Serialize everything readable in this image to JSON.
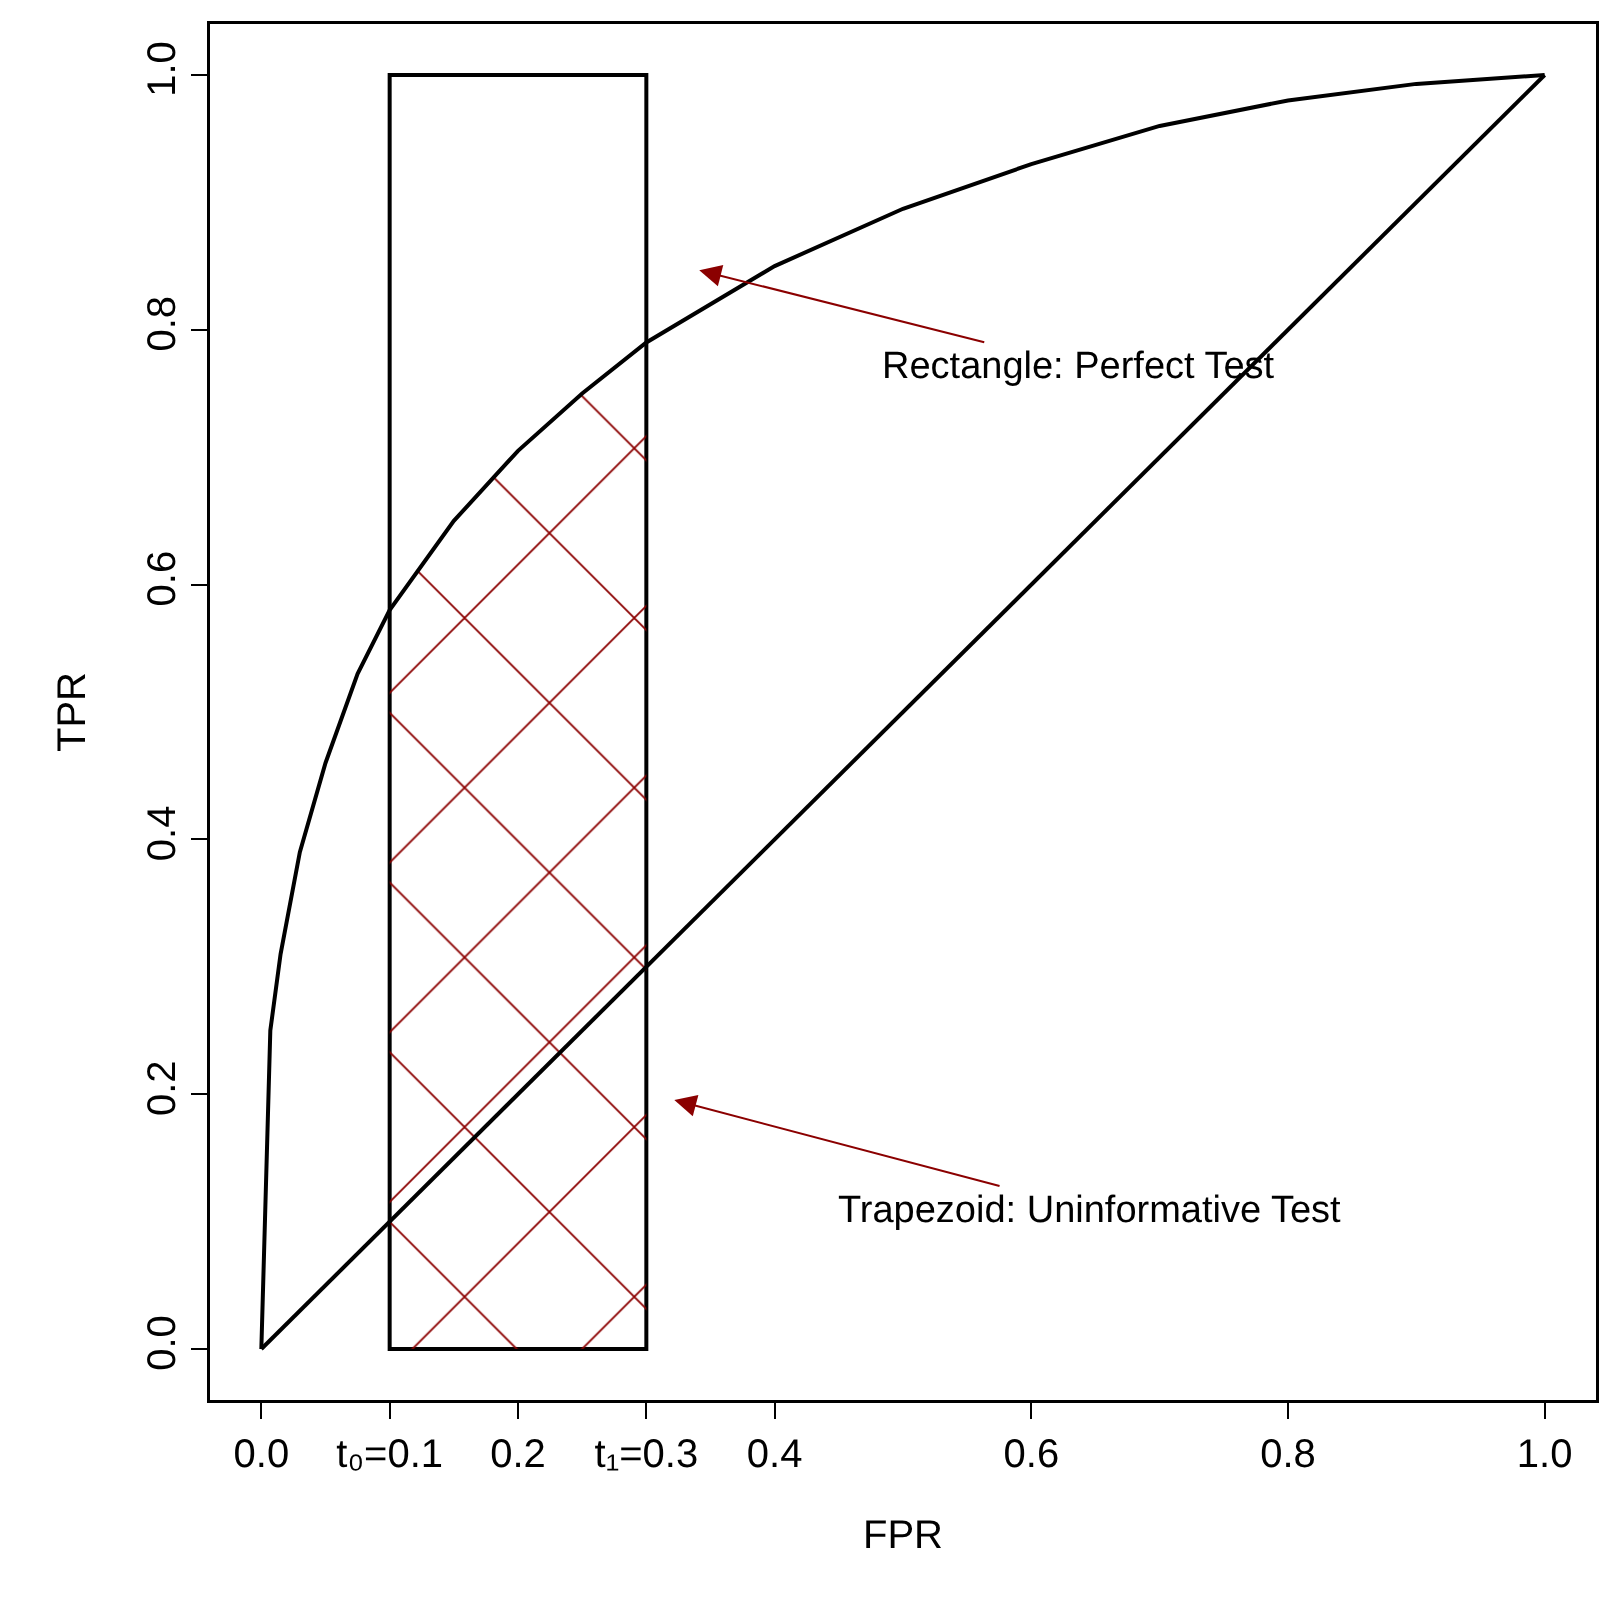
{
  "chart_data": {
    "type": "line",
    "xlabel": "FPR",
    "ylabel": "TPR",
    "xlim": [
      -0.04,
      1.04
    ],
    "ylim": [
      -0.04,
      1.04
    ],
    "xticks": [
      {
        "value": 0,
        "label": "0.0"
      },
      {
        "value": 0.1,
        "label": "t₀=0.1"
      },
      0.2,
      {
        "value": 0.3,
        "label": "t₁=0.3"
      },
      0.4,
      0.6,
      0.8,
      {
        "value": 1,
        "label": "1.0"
      }
    ],
    "yticks": [
      {
        "value": 0,
        "label": "0.0"
      },
      0.2,
      0.4,
      0.6,
      0.8,
      {
        "value": 1,
        "label": "1.0"
      }
    ],
    "grid": false,
    "marker": "none",
    "line_style": "solid",
    "series": [
      {
        "type": "area",
        "color": "#8b0000",
        "x": [
          0.1,
          0.12,
          0.15,
          0.18,
          0.2,
          0.22,
          0.25,
          0.28,
          0.3
        ],
        "values": [
          0.58,
          0.61,
          0.65,
          0.685,
          0.705,
          0.725,
          0.75,
          0.775,
          0.79
        ]
      },
      {
        "color": "#000000",
        "x": [
          0,
          0.007,
          0.015,
          0.03,
          0.05,
          0.075,
          0.1,
          0.15,
          0.2,
          0.25,
          0.3,
          0.4,
          0.5,
          0.6,
          0.7,
          0.8,
          0.9,
          1
        ],
        "values": [
          0,
          0.25,
          0.31,
          0.39,
          0.46,
          0.53,
          0.58,
          0.65,
          0.705,
          0.75,
          0.79,
          0.85,
          0.895,
          0.93,
          0.96,
          0.98,
          0.993,
          1
        ]
      },
      {
        "color": "#000000",
        "x": [
          0,
          1
        ],
        "values": [
          0,
          1
        ]
      },
      {
        "type": "bar",
        "color": "#000000",
        "x": [
          0.2
        ],
        "values": [
          1
        ]
      }
    ],
    "annotations": [
      "Rectangle: Perfect Test",
      "Trapezoid: Uninformative Test"
    ]
  }
}
